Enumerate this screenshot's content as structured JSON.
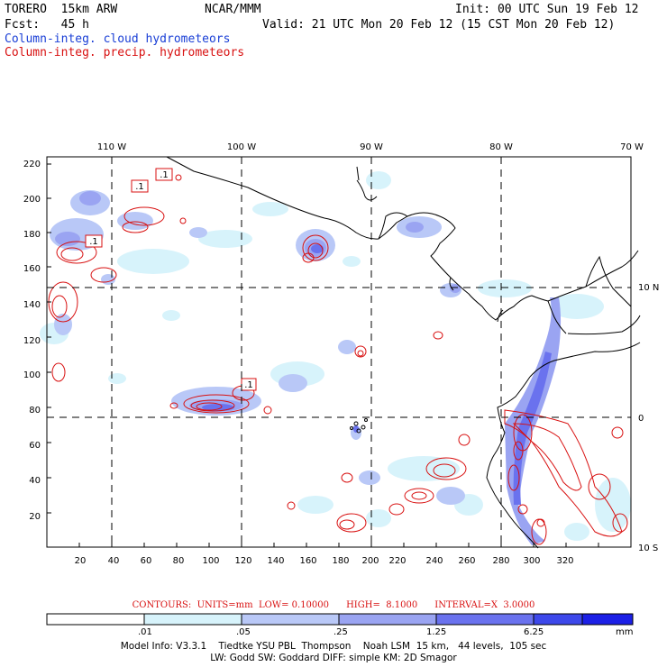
{
  "header": {
    "model_left": "TORERO  15km ARW",
    "center": "NCAR/MMM",
    "init": "Init: 00 UTC Sun 19 Feb 12",
    "fcst": "Fcst:   45 h",
    "valid": "Valid: 21 UTC Mon 20 Feb 12 (15 CST Mon 20 Feb 12)",
    "cloud_legend": "Column-integ. cloud hydrometeors",
    "precip_legend": "Column-integ. precip. hydrometeors"
  },
  "map": {
    "top_lon_labels": [
      "110 W",
      "100 W",
      "90 W",
      "80 W",
      "70 W"
    ],
    "right_lat_labels": [
      "10 N",
      "0",
      "10 S"
    ],
    "left_ticks": [
      "220",
      "200",
      "180",
      "160",
      "140",
      "120",
      "100",
      "80",
      "60",
      "40",
      "20"
    ],
    "bottom_ticks": [
      "20",
      "40",
      "60",
      "80",
      "100",
      "120",
      "140",
      "160",
      "180",
      "200",
      "220",
      "240",
      "260",
      "280",
      "300",
      "320"
    ],
    "contour_labels": [
      ".1",
      ".1",
      ".1",
      ".1"
    ]
  },
  "contour_info": "CONTOURS:  UNITS=mm  LOW= 0.10000      HIGH=  8.1000      INTERVAL=X  3.0000",
  "colorbar": {
    "labels": [
      ".01",
      ".05",
      ".25",
      "1.25",
      "6.25"
    ],
    "unit": "mm",
    "colors": [
      "#ffffff",
      "#d7f3fb",
      "#b9c8f7",
      "#9aa4f2",
      "#6a72ee",
      "#3d48ea",
      "#1c20e6"
    ]
  },
  "footer": {
    "line1": "Model Info: V3.3.1    Tiedtke YSU PBL  Thompson    Noah LSM  15 km,   44 levels,  105 sec",
    "line2": "LW: Godd SW: Goddard DIFF: simple KM: 2D Smagor"
  }
}
